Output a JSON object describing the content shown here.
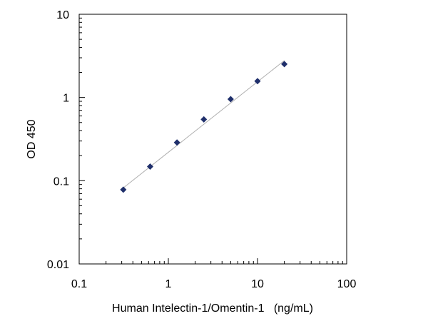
{
  "chart_data": {
    "type": "scatter",
    "title": "",
    "xlabel": "Human Intelectin-1/Omentin-1   (ng/mL)",
    "ylabel": "OD 450",
    "x_scale": "log",
    "y_scale": "log",
    "xlim": [
      0.1,
      100
    ],
    "ylim": [
      0.01,
      10
    ],
    "x_tick_labels": [
      "0.1",
      "1",
      "10",
      "100"
    ],
    "y_tick_labels": [
      "0.01",
      "0.1",
      "1",
      "10"
    ],
    "grid": false,
    "legend": "none",
    "series": [
      {
        "marker": "diamond",
        "color": "#1f2f6b",
        "x": [
          0.3125,
          0.625,
          1.25,
          2.5,
          5,
          10,
          20
        ],
        "y": [
          0.078,
          0.148,
          0.288,
          0.545,
          0.955,
          1.57,
          2.52
        ]
      }
    ],
    "fit_line": {
      "color": "#b0b0b0",
      "x": [
        0.3125,
        20
      ],
      "y": [
        0.082,
        2.78
      ]
    }
  }
}
